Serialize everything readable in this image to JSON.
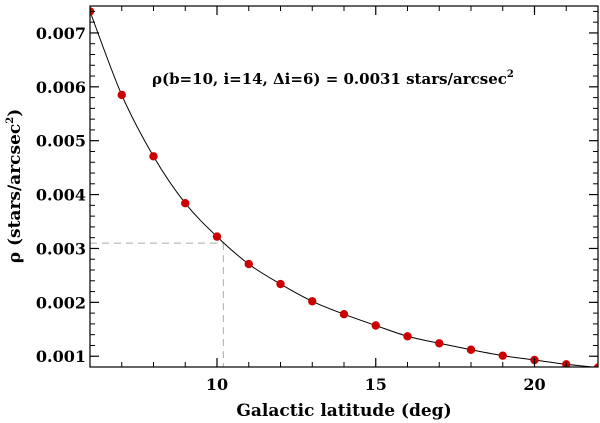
{
  "chart_data": {
    "type": "scatter",
    "title": "",
    "xlabel": "Galactic latitude (deg)",
    "ylabel_main": "ρ (stars/arcsec",
    "ylabel_sup": "2",
    "ylabel_end": ")",
    "xlim": [
      6,
      22
    ],
    "ylim": [
      0.0008,
      0.0075
    ],
    "x_ticks": [
      10,
      15,
      20
    ],
    "x_tick_labels": [
      "10",
      "15",
      "20"
    ],
    "y_ticks": [
      0.001,
      0.002,
      0.003,
      0.004,
      0.005,
      0.006,
      0.007
    ],
    "y_tick_labels": [
      "0.001",
      "0.002",
      "0.003",
      "0.004",
      "0.005",
      "0.006",
      "0.007"
    ],
    "grid": false,
    "annotation": {
      "text": "ρ(b=10, i=14, Δi=6) = 0.0031 stars/arcsec",
      "sup": "2"
    },
    "highlight": {
      "x": 10.2,
      "y": 0.0031
    },
    "point_color": "#cc0000",
    "curve_color": "#000000",
    "guide_color": "#aaaaaa",
    "series": [
      {
        "type": "scatter",
        "x": [
          6,
          7,
          8,
          9,
          10,
          11,
          12,
          13,
          14,
          15,
          16,
          17,
          18,
          19,
          20,
          21,
          22
        ],
        "y": [
          0.0074,
          0.00585,
          0.00471,
          0.00384,
          0.00322,
          0.00271,
          0.00234,
          0.00202,
          0.00178,
          0.00157,
          0.00137,
          0.00124,
          0.00112,
          0.00101,
          0.00093,
          0.00085,
          0.00079
        ]
      }
    ]
  }
}
